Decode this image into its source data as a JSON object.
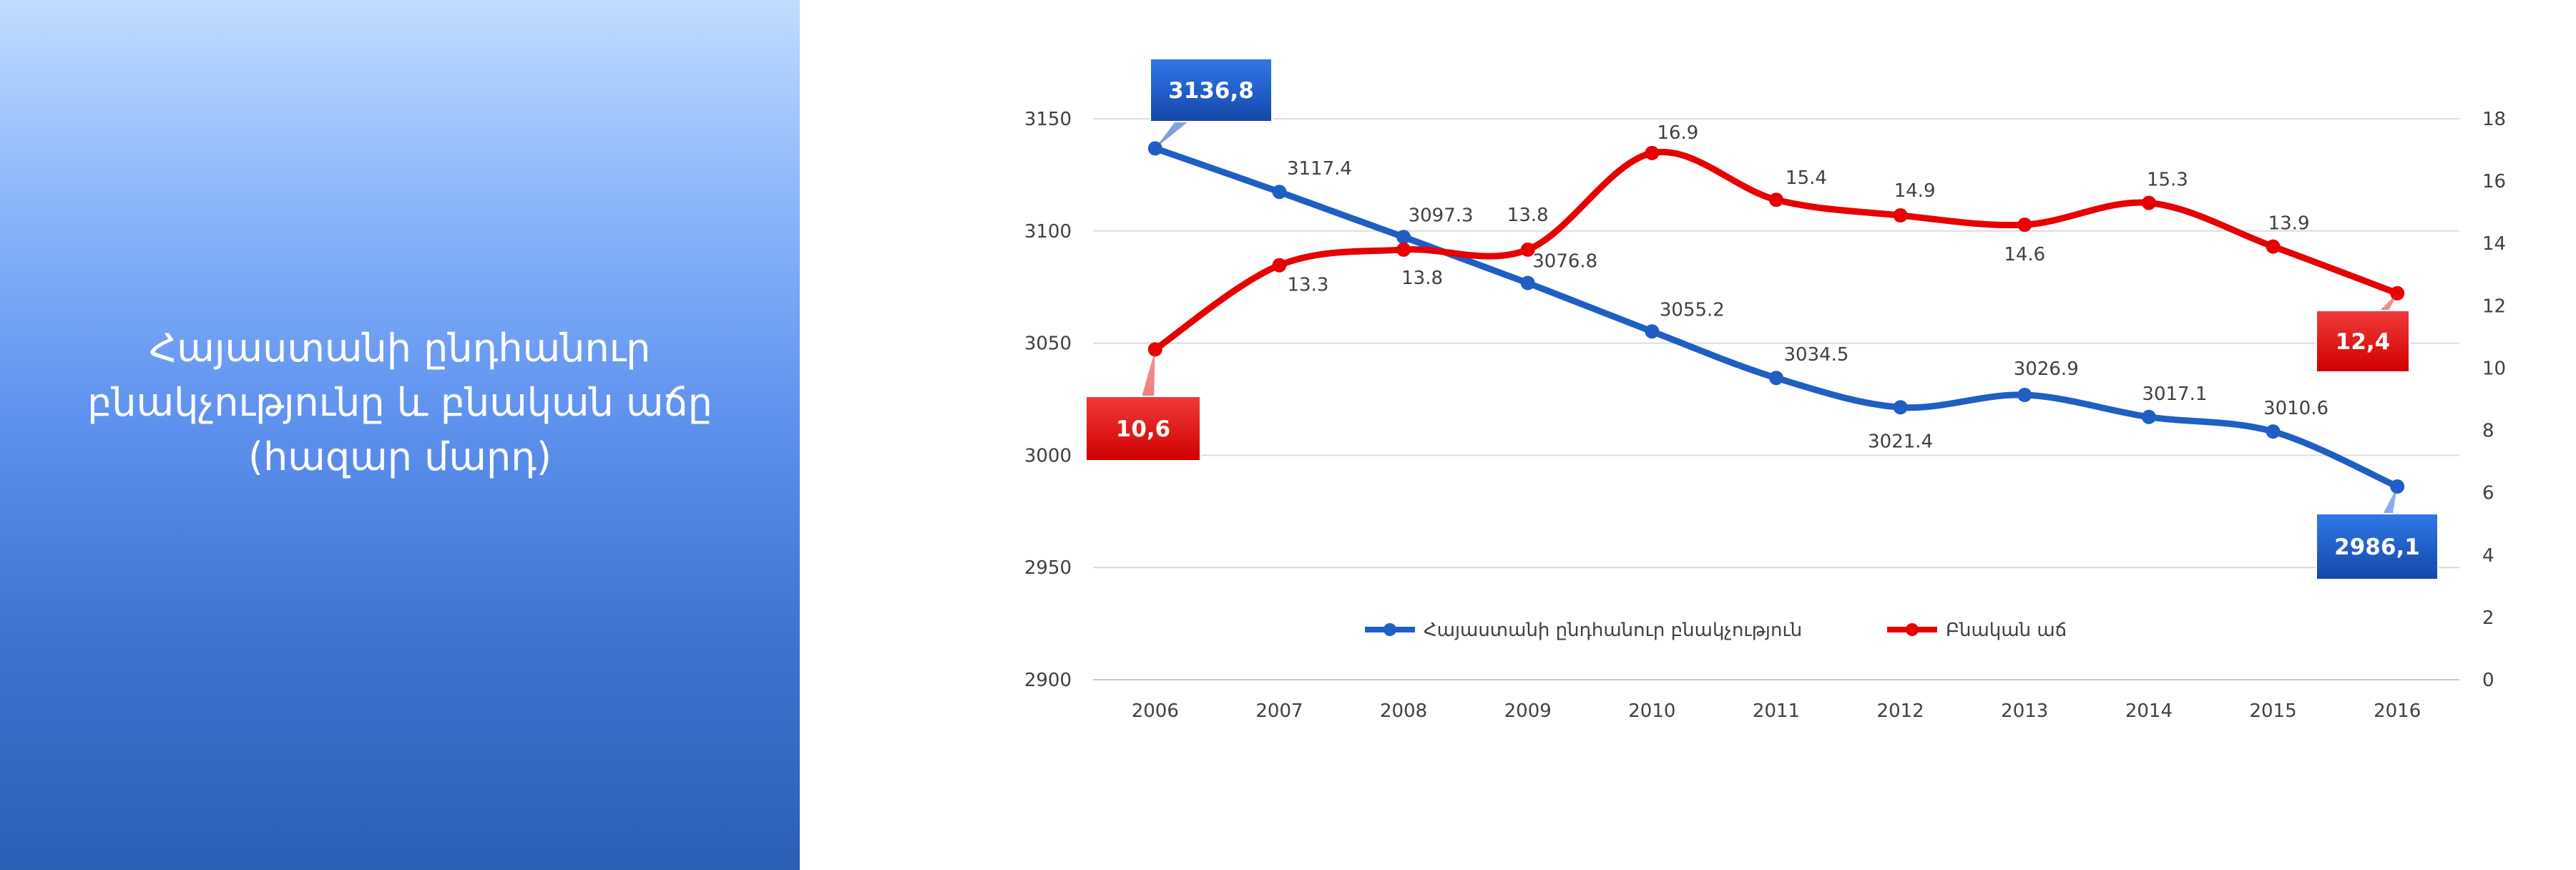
{
  "panel": {
    "title_lines": [
      "Հայաստանի ընդհանուր",
      "բնակչությունը և բնական աճը",
      "(հազար մարդ)"
    ]
  },
  "chart_data": {
    "type": "line",
    "x": [
      "2006",
      "2007",
      "2008",
      "2009",
      "2010",
      "2011",
      "2012",
      "2013",
      "2014",
      "2015",
      "2016"
    ],
    "y_left_ticks": [
      "2900",
      "2950",
      "3000",
      "3050",
      "3100",
      "3150"
    ],
    "y_right_ticks": [
      "0",
      "2",
      "4",
      "6",
      "8",
      "10",
      "12",
      "14",
      "16",
      "18"
    ],
    "ylim_left": [
      2900,
      3150
    ],
    "ylim_right": [
      0,
      18
    ],
    "grid": true,
    "legend_position": "bottom-center",
    "series": [
      {
        "name": "Հայաստանի ընդհանուր բնակչություն",
        "axis": "left",
        "color": "#1f5fc4",
        "values": [
          3136.8,
          3117.4,
          3097.3,
          3076.8,
          3055.2,
          3034.5,
          3021.4,
          3026.9,
          3017.1,
          3010.6,
          2986.1
        ],
        "labels": [
          "3136,8",
          "3117.4",
          "3097.3",
          "3076.8",
          "3055.2",
          "3034.5",
          "3021.4",
          "3026.9",
          "3017.1",
          "3010.6",
          "2986,1"
        ]
      },
      {
        "name": "Բնական աճ",
        "axis": "right",
        "color": "#e60000",
        "values": [
          10.6,
          13.3,
          13.8,
          13.8,
          16.9,
          15.4,
          14.9,
          14.6,
          15.3,
          13.9,
          12.4
        ],
        "labels": [
          "10,6",
          "13.3",
          "13.8",
          "13.8",
          "16.9",
          "15.4",
          "14.9",
          "14.6",
          "15.3",
          "13.9",
          "12,4"
        ]
      }
    ]
  }
}
